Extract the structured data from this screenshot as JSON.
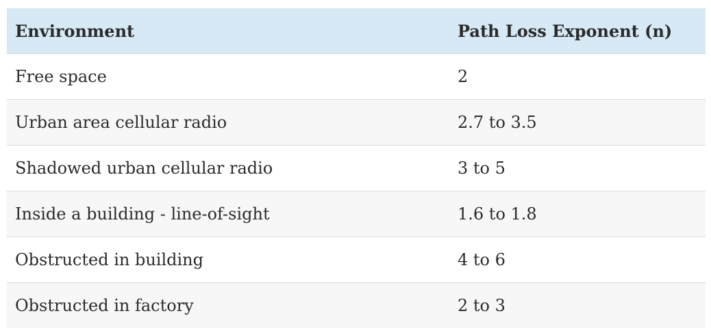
{
  "table": {
    "headers": [
      "Environment",
      "Path Loss Exponent (n)"
    ],
    "rows": [
      [
        "Free space",
        "2"
      ],
      [
        "Urban area cellular radio",
        "2.7 to 3.5"
      ],
      [
        "Shadowed urban cellular radio",
        "3 to 5"
      ],
      [
        "Inside a building - line-of-sight",
        "1.6 to 1.8"
      ],
      [
        "Obstructed in building",
        "4 to 6"
      ],
      [
        "Obstructed in factory",
        "2 to 3"
      ]
    ]
  },
  "colors": {
    "header_bg": "#d6e9f5",
    "row_alt_bg": "#f7f7f7",
    "text": "#2b2b2b"
  }
}
